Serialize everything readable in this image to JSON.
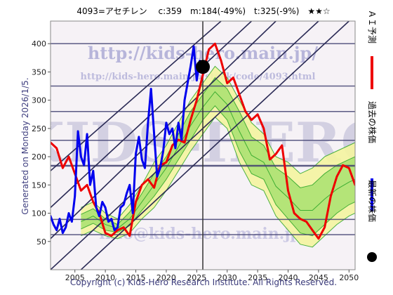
{
  "header": {
    "title": "4093=アセチレン　 c:359　m:184(-49%)　t:325(-9%)　★★☆"
  },
  "side": {
    "generated": "Generated on Monday 2026/1/5."
  },
  "footer": {
    "copyright": "Copyright (c) Kids-Hero Research Institute. All Rights Reserved."
  },
  "watermark": {
    "big": "KIDS-HERO",
    "url": "http://kids-hero.main.jp/",
    "url2": "http://kids-hero.main.jp/stock/code/4093.html",
    "mail": "info@kids-hero.main.jp"
  },
  "legend": [
    {
      "label": "ＡＩ予測",
      "color": "#ee0000",
      "kind": "line"
    },
    {
      "label": "過去の株価",
      "color": "#0000ee",
      "kind": "line"
    },
    {
      "label": "最新の株価",
      "color": "#000000",
      "kind": "dot"
    }
  ],
  "colors": {
    "band_outer": "#f4f4a0",
    "band_inner": "#a8e070",
    "band_line": "#20a020",
    "channel": "#2a2a55",
    "grid": "#404070"
  },
  "chart_data": {
    "type": "line",
    "xlim": [
      2001,
      2051
    ],
    "ylim": [
      0,
      440
    ],
    "x_ticks": [
      2005,
      2010,
      2015,
      2020,
      2025,
      2030,
      2035,
      2040,
      2045,
      2050
    ],
    "y_ticks": [
      50,
      100,
      150,
      200,
      250,
      300,
      350,
      400
    ],
    "horizontal_lines": [
      62,
      89,
      184,
      229,
      280,
      325,
      400
    ],
    "latest_marker": {
      "x": 2026.0,
      "y": 359
    },
    "vertical_marker_x": 2026.0,
    "channel_lines": [
      {
        "x1": 2001,
        "y1": 55,
        "x2": 2038,
        "y2": 440
      },
      {
        "x1": 2001,
        "y1": 0,
        "x2": 2045,
        "y2": 440
      },
      {
        "x1": 2006,
        "y1": 0,
        "x2": 2050,
        "y2": 440
      },
      {
        "x1": 2001,
        "y1": 110,
        "x2": 2034,
        "y2": 440
      },
      {
        "x1": 2001,
        "y1": 175,
        "x2": 2029,
        "y2": 440
      }
    ],
    "band": {
      "x": [
        2006,
        2008,
        2010,
        2012,
        2014,
        2016,
        2018,
        2020,
        2022,
        2024,
        2026,
        2028,
        2030,
        2032,
        2034,
        2036,
        2038,
        2040,
        2042,
        2044,
        2046,
        2048,
        2050,
        2051
      ],
      "outer_low": [
        60,
        70,
        60,
        55,
        65,
        90,
        110,
        140,
        175,
        210,
        240,
        270,
        250,
        190,
        150,
        140,
        95,
        70,
        45,
        40,
        60,
        80,
        95,
        100
      ],
      "outer_high": [
        110,
        120,
        100,
        90,
        115,
        150,
        190,
        220,
        260,
        300,
        330,
        360,
        340,
        300,
        260,
        240,
        200,
        190,
        170,
        180,
        200,
        210,
        220,
        225
      ],
      "inner_low": [
        72,
        82,
        70,
        66,
        78,
        105,
        130,
        160,
        195,
        230,
        265,
        290,
        265,
        210,
        170,
        160,
        115,
        90,
        65,
        60,
        80,
        100,
        115,
        120
      ],
      "inner_high": [
        98,
        108,
        90,
        80,
        102,
        135,
        170,
        200,
        240,
        280,
        310,
        340,
        320,
        280,
        235,
        220,
        180,
        165,
        145,
        150,
        170,
        185,
        195,
        200
      ]
    },
    "series": [
      {
        "name": "ＡＩ予測",
        "color": "#ee0000",
        "x": [
          2001,
          2002,
          2003,
          2004,
          2005,
          2006,
          2007,
          2008,
          2009,
          2010,
          2011,
          2012,
          2013,
          2014,
          2015,
          2016,
          2017,
          2018,
          2019,
          2020,
          2021,
          2022,
          2023,
          2024,
          2025,
          2026,
          2027,
          2028,
          2029,
          2030,
          2031,
          2032,
          2033,
          2034,
          2035,
          2036,
          2037,
          2038,
          2039,
          2040,
          2041,
          2042,
          2043,
          2044,
          2045,
          2046,
          2047,
          2048,
          2049,
          2050,
          2051
        ],
        "y": [
          225,
          215,
          180,
          200,
          170,
          140,
          150,
          120,
          100,
          65,
          60,
          70,
          75,
          60,
          120,
          150,
          160,
          145,
          185,
          190,
          220,
          230,
          225,
          265,
          300,
          345,
          390,
          400,
          370,
          330,
          340,
          310,
          280,
          265,
          275,
          250,
          195,
          205,
          220,
          140,
          100,
          90,
          85,
          70,
          55,
          75,
          130,
          165,
          185,
          180,
          150
        ]
      },
      {
        "name": "過去の株価",
        "color": "#0000ee",
        "x": [
          2001.0,
          2001.5,
          2002.0,
          2002.5,
          2003.0,
          2003.5,
          2004.0,
          2004.5,
          2005.0,
          2005.5,
          2006.0,
          2006.5,
          2007.0,
          2007.5,
          2008.0,
          2008.5,
          2009.0,
          2009.5,
          2010.0,
          2010.5,
          2011.0,
          2011.5,
          2012.0,
          2012.5,
          2013.0,
          2013.5,
          2014.0,
          2014.5,
          2015.0,
          2015.5,
          2016.0,
          2016.5,
          2017.0,
          2017.5,
          2018.0,
          2018.5,
          2019.0,
          2019.5,
          2020.0,
          2020.5,
          2021.0,
          2021.5,
          2022.0,
          2022.5,
          2023.0,
          2023.5,
          2024.0,
          2024.5,
          2025.0,
          2025.5,
          2026.0
        ],
        "y": [
          95,
          80,
          70,
          90,
          65,
          75,
          100,
          85,
          130,
          245,
          200,
          185,
          240,
          150,
          175,
          110,
          95,
          120,
          110,
          85,
          90,
          70,
          75,
          110,
          115,
          135,
          150,
          100,
          205,
          235,
          195,
          180,
          260,
          320,
          240,
          165,
          180,
          210,
          260,
          240,
          250,
          215,
          260,
          230,
          300,
          330,
          360,
          395,
          335,
          370,
          359
        ]
      }
    ]
  }
}
